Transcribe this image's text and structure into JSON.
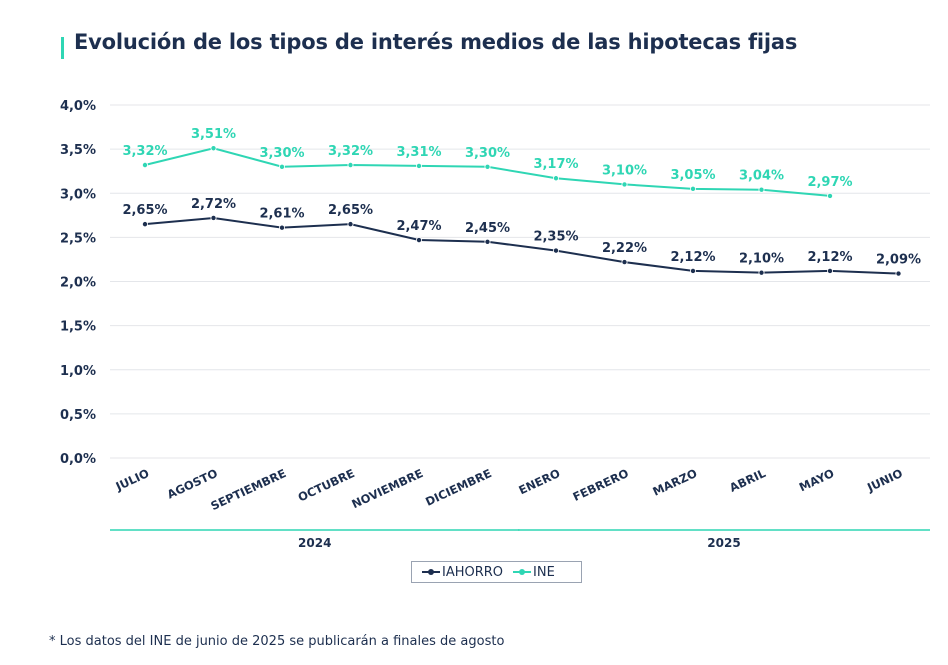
{
  "title": "Evolución de los tipos de interés medios de las hipotecas fijas",
  "footnote": "* Los datos del INE de junio de 2025 se publicarán a finales de agosto",
  "legend": {
    "series1": "IAHORRO",
    "series2": "INE"
  },
  "colors": {
    "iahorro": "#1d2f4f",
    "ine": "#2fd6b4",
    "grid": "#e4e6ea",
    "text": "#1d2f4f"
  },
  "chart_data": {
    "type": "line",
    "title": "Evolución de los tipos de interés medios de las hipotecas fijas",
    "categories": [
      "JULIO",
      "AGOSTO",
      "SEPTIEMBRE",
      "OCTUBRE",
      "NOVIEMBRE",
      "DICIEMBRE",
      "ENERO",
      "FEBRERO",
      "MARZO",
      "ABRIL",
      "MAYO",
      "JUNIO"
    ],
    "year_groups": [
      {
        "label": "2024",
        "from": 0,
        "to": 5
      },
      {
        "label": "2025",
        "from": 6,
        "to": 11
      }
    ],
    "series": [
      {
        "name": "IAHORRO",
        "values": [
          2.65,
          2.72,
          2.61,
          2.65,
          2.47,
          2.45,
          2.35,
          2.22,
          2.12,
          2.1,
          2.12,
          2.09
        ],
        "labels": [
          "2,65%",
          "2,72%",
          "2,61%",
          "2,65%",
          "2,47%",
          "2,45%",
          "2,35%",
          "2,22%",
          "2,12%",
          "2,10%",
          "2,12%",
          "2,09%"
        ]
      },
      {
        "name": "INE",
        "values": [
          3.32,
          3.51,
          3.3,
          3.32,
          3.31,
          3.3,
          3.17,
          3.1,
          3.05,
          3.04,
          2.97,
          null
        ],
        "labels": [
          "3,32%",
          "3,51%",
          "3,30%",
          "3,32%",
          "3,31%",
          "3,30%",
          "3,17%",
          "3,10%",
          "3,05%",
          "3,04%",
          "2,97%",
          ""
        ]
      }
    ],
    "yticks": [
      "0,0%",
      "0,5%",
      "1,0%",
      "1,5%",
      "2,0%",
      "2,5%",
      "3,0%",
      "3,5%",
      "4,0%"
    ],
    "ylim": [
      0,
      4.0
    ],
    "ystep": 0.5,
    "grid": true,
    "legend_position": "bottom-center"
  }
}
